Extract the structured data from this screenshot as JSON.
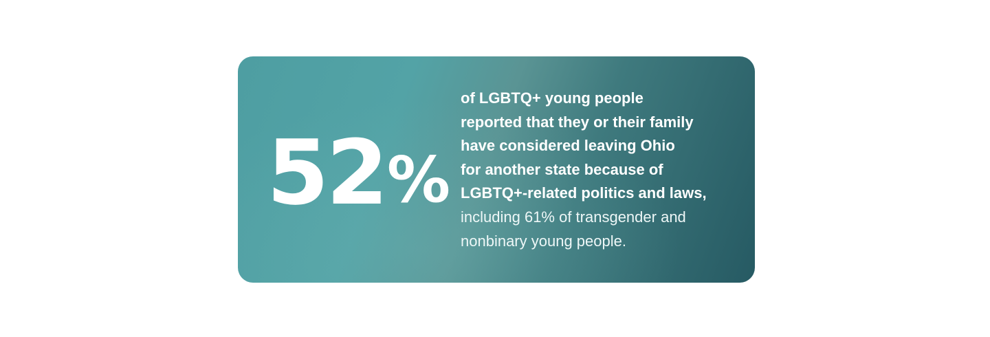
{
  "stat": {
    "number": "52",
    "unit": "%"
  },
  "description": {
    "bold_lines": [
      "of LGBTQ+ young people",
      "reported that they or their family",
      "have considered leaving Ohio",
      "for another state because of",
      "LGBTQ+-related politics and laws,"
    ],
    "regular_lines": [
      "including 61% of transgender and",
      "nonbinary young people."
    ]
  },
  "colors": {
    "gradient_light": "#53a3a6",
    "gradient_dark": "#265a63",
    "text": "#ffffff",
    "background": "#ffffff"
  }
}
